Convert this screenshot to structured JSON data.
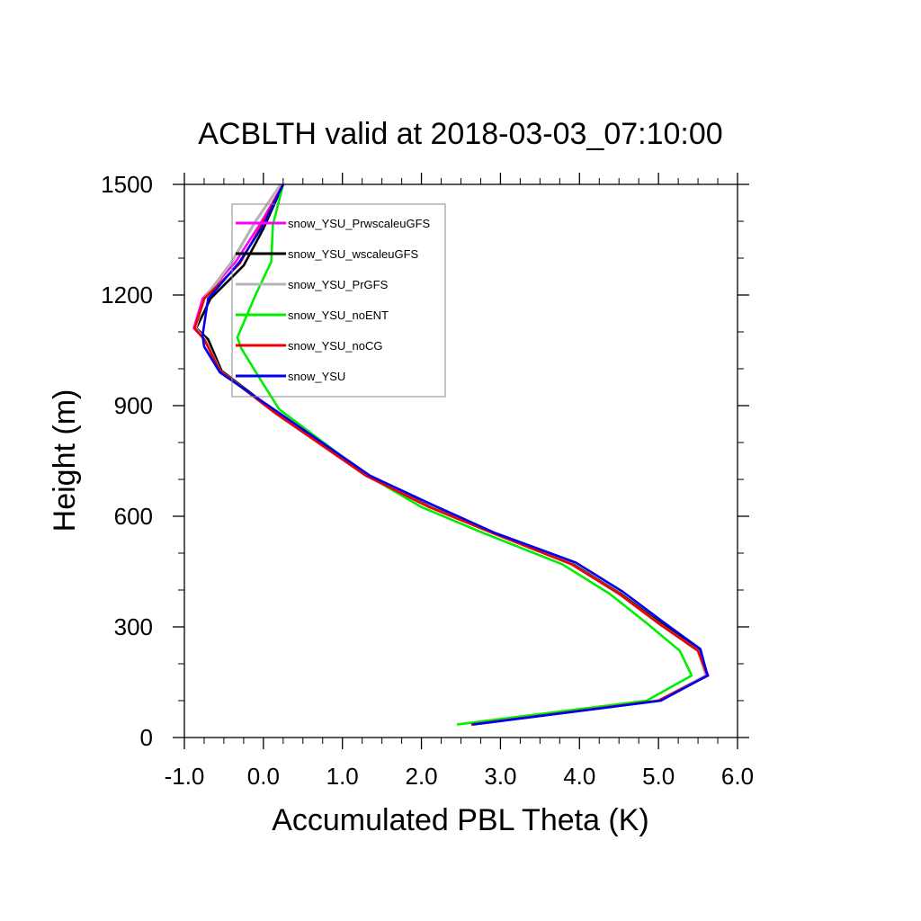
{
  "chart_data": {
    "type": "line",
    "title": "ACBLTH valid at 2018-03-03_07:10:00",
    "xlabel": "Accumulated PBL Theta (K)",
    "ylabel": "Height (m)",
    "xlim": [
      -1.0,
      6.0
    ],
    "ylim": [
      0,
      1500
    ],
    "xticks": [
      -1.0,
      0.0,
      1.0,
      2.0,
      3.0,
      4.0,
      5.0,
      6.0
    ],
    "xtick_labels": [
      "-1.0",
      "0.0",
      "1.0",
      "2.0",
      "3.0",
      "4.0",
      "5.0",
      "6.0"
    ],
    "yticks": [
      0,
      300,
      600,
      900,
      1200,
      1500
    ],
    "ytick_labels": [
      "0",
      "300",
      "600",
      "900",
      "1200",
      "1500"
    ],
    "grid": false,
    "legend_position": "top-left",
    "series": [
      {
        "name": "snow_YSU_PrwscaleuGFS",
        "color": "#ff00ff",
        "x": [
          2.63,
          5.0,
          5.63,
          5.5,
          5.0,
          4.5,
          3.9,
          2.9,
          2.1,
          1.3,
          0.15,
          -0.55,
          -0.75,
          -0.88,
          -0.77,
          -0.35,
          -0.05,
          0.25
        ],
        "y": [
          35,
          100,
          168,
          235,
          310,
          390,
          470,
          555,
          625,
          710,
          880,
          995,
          1080,
          1110,
          1190,
          1290,
          1390,
          1500
        ]
      },
      {
        "name": "snow_YSU_wscaleuGFS",
        "color": "#000000",
        "x": [
          2.63,
          5.02,
          5.62,
          5.53,
          5.03,
          4.52,
          3.92,
          2.92,
          2.12,
          1.32,
          0.17,
          -0.53,
          -0.7,
          -0.85,
          -0.67,
          -0.25,
          0.0,
          0.25
        ],
        "y": [
          35,
          100,
          168,
          235,
          310,
          390,
          470,
          555,
          625,
          710,
          880,
          995,
          1080,
          1110,
          1190,
          1280,
          1380,
          1500
        ]
      },
      {
        "name": "snow_YSU_PrGFS",
        "color": "#b5b5b5",
        "x": [
          2.63,
          5.0,
          5.6,
          5.5,
          5.0,
          4.5,
          3.9,
          2.9,
          2.1,
          1.3,
          0.15,
          -0.55,
          -0.74,
          -0.86,
          -0.75,
          -0.4,
          -0.1,
          0.22
        ],
        "y": [
          35,
          100,
          168,
          235,
          310,
          390,
          470,
          555,
          625,
          710,
          880,
          995,
          1080,
          1110,
          1190,
          1290,
          1400,
          1500
        ]
      },
      {
        "name": "snow_YSU_noENT",
        "color": "#00ee00",
        "x": [
          2.45,
          4.85,
          5.42,
          5.27,
          4.85,
          4.38,
          3.78,
          2.78,
          2.0,
          1.32,
          0.2,
          -0.05,
          -0.28,
          -0.33,
          -0.1,
          0.1,
          0.12,
          0.25
        ],
        "y": [
          35,
          100,
          168,
          235,
          310,
          390,
          470,
          555,
          625,
          710,
          890,
          975,
          1055,
          1085,
          1200,
          1290,
          1390,
          1500
        ]
      },
      {
        "name": "snow_YSU_noCG",
        "color": "#ee0000",
        "x": [
          2.63,
          5.0,
          5.62,
          5.5,
          5.0,
          4.5,
          3.9,
          2.9,
          2.1,
          1.3,
          0.15,
          -0.55,
          -0.75,
          -0.87,
          -0.75,
          -0.3,
          -0.02,
          0.25
        ],
        "y": [
          35,
          100,
          168,
          235,
          310,
          390,
          470,
          555,
          625,
          710,
          880,
          995,
          1080,
          1110,
          1190,
          1285,
          1390,
          1500
        ]
      },
      {
        "name": "snow_YSU",
        "color": "#0000ee",
        "x": [
          2.65,
          5.03,
          5.62,
          5.53,
          5.05,
          4.55,
          3.95,
          2.93,
          2.15,
          1.35,
          0.2,
          -0.55,
          -0.75,
          -0.77,
          -0.7,
          -0.3,
          0.0,
          0.25
        ],
        "y": [
          35,
          100,
          168,
          240,
          315,
          395,
          475,
          555,
          630,
          710,
          880,
          990,
          1060,
          1090,
          1190,
          1290,
          1390,
          1500
        ]
      }
    ]
  }
}
